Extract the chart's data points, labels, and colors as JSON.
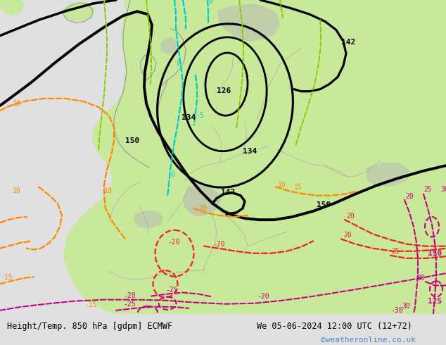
{
  "title_left": "Height/Temp. 850 hPa [gdpm] ECMWF",
  "title_right": "We 05-06-2024 12:00 UTC (12+72)",
  "watermark": "©weatheronline.co.uk",
  "land_green": "#c8e89a",
  "ocean_gray": "#d8d8d8",
  "deep_ocean": "#c0c8d0",
  "gray_land": "#b8b8b8",
  "fig_bg": "#e0e0e0",
  "fig_width": 6.34,
  "fig_height": 4.9,
  "dpi": 100,
  "BK": "#000000",
  "CY": "#00cccc",
  "GR": "#88cc00",
  "OR": "#ff8800",
  "RD": "#ee2222",
  "MG": "#cc0088"
}
